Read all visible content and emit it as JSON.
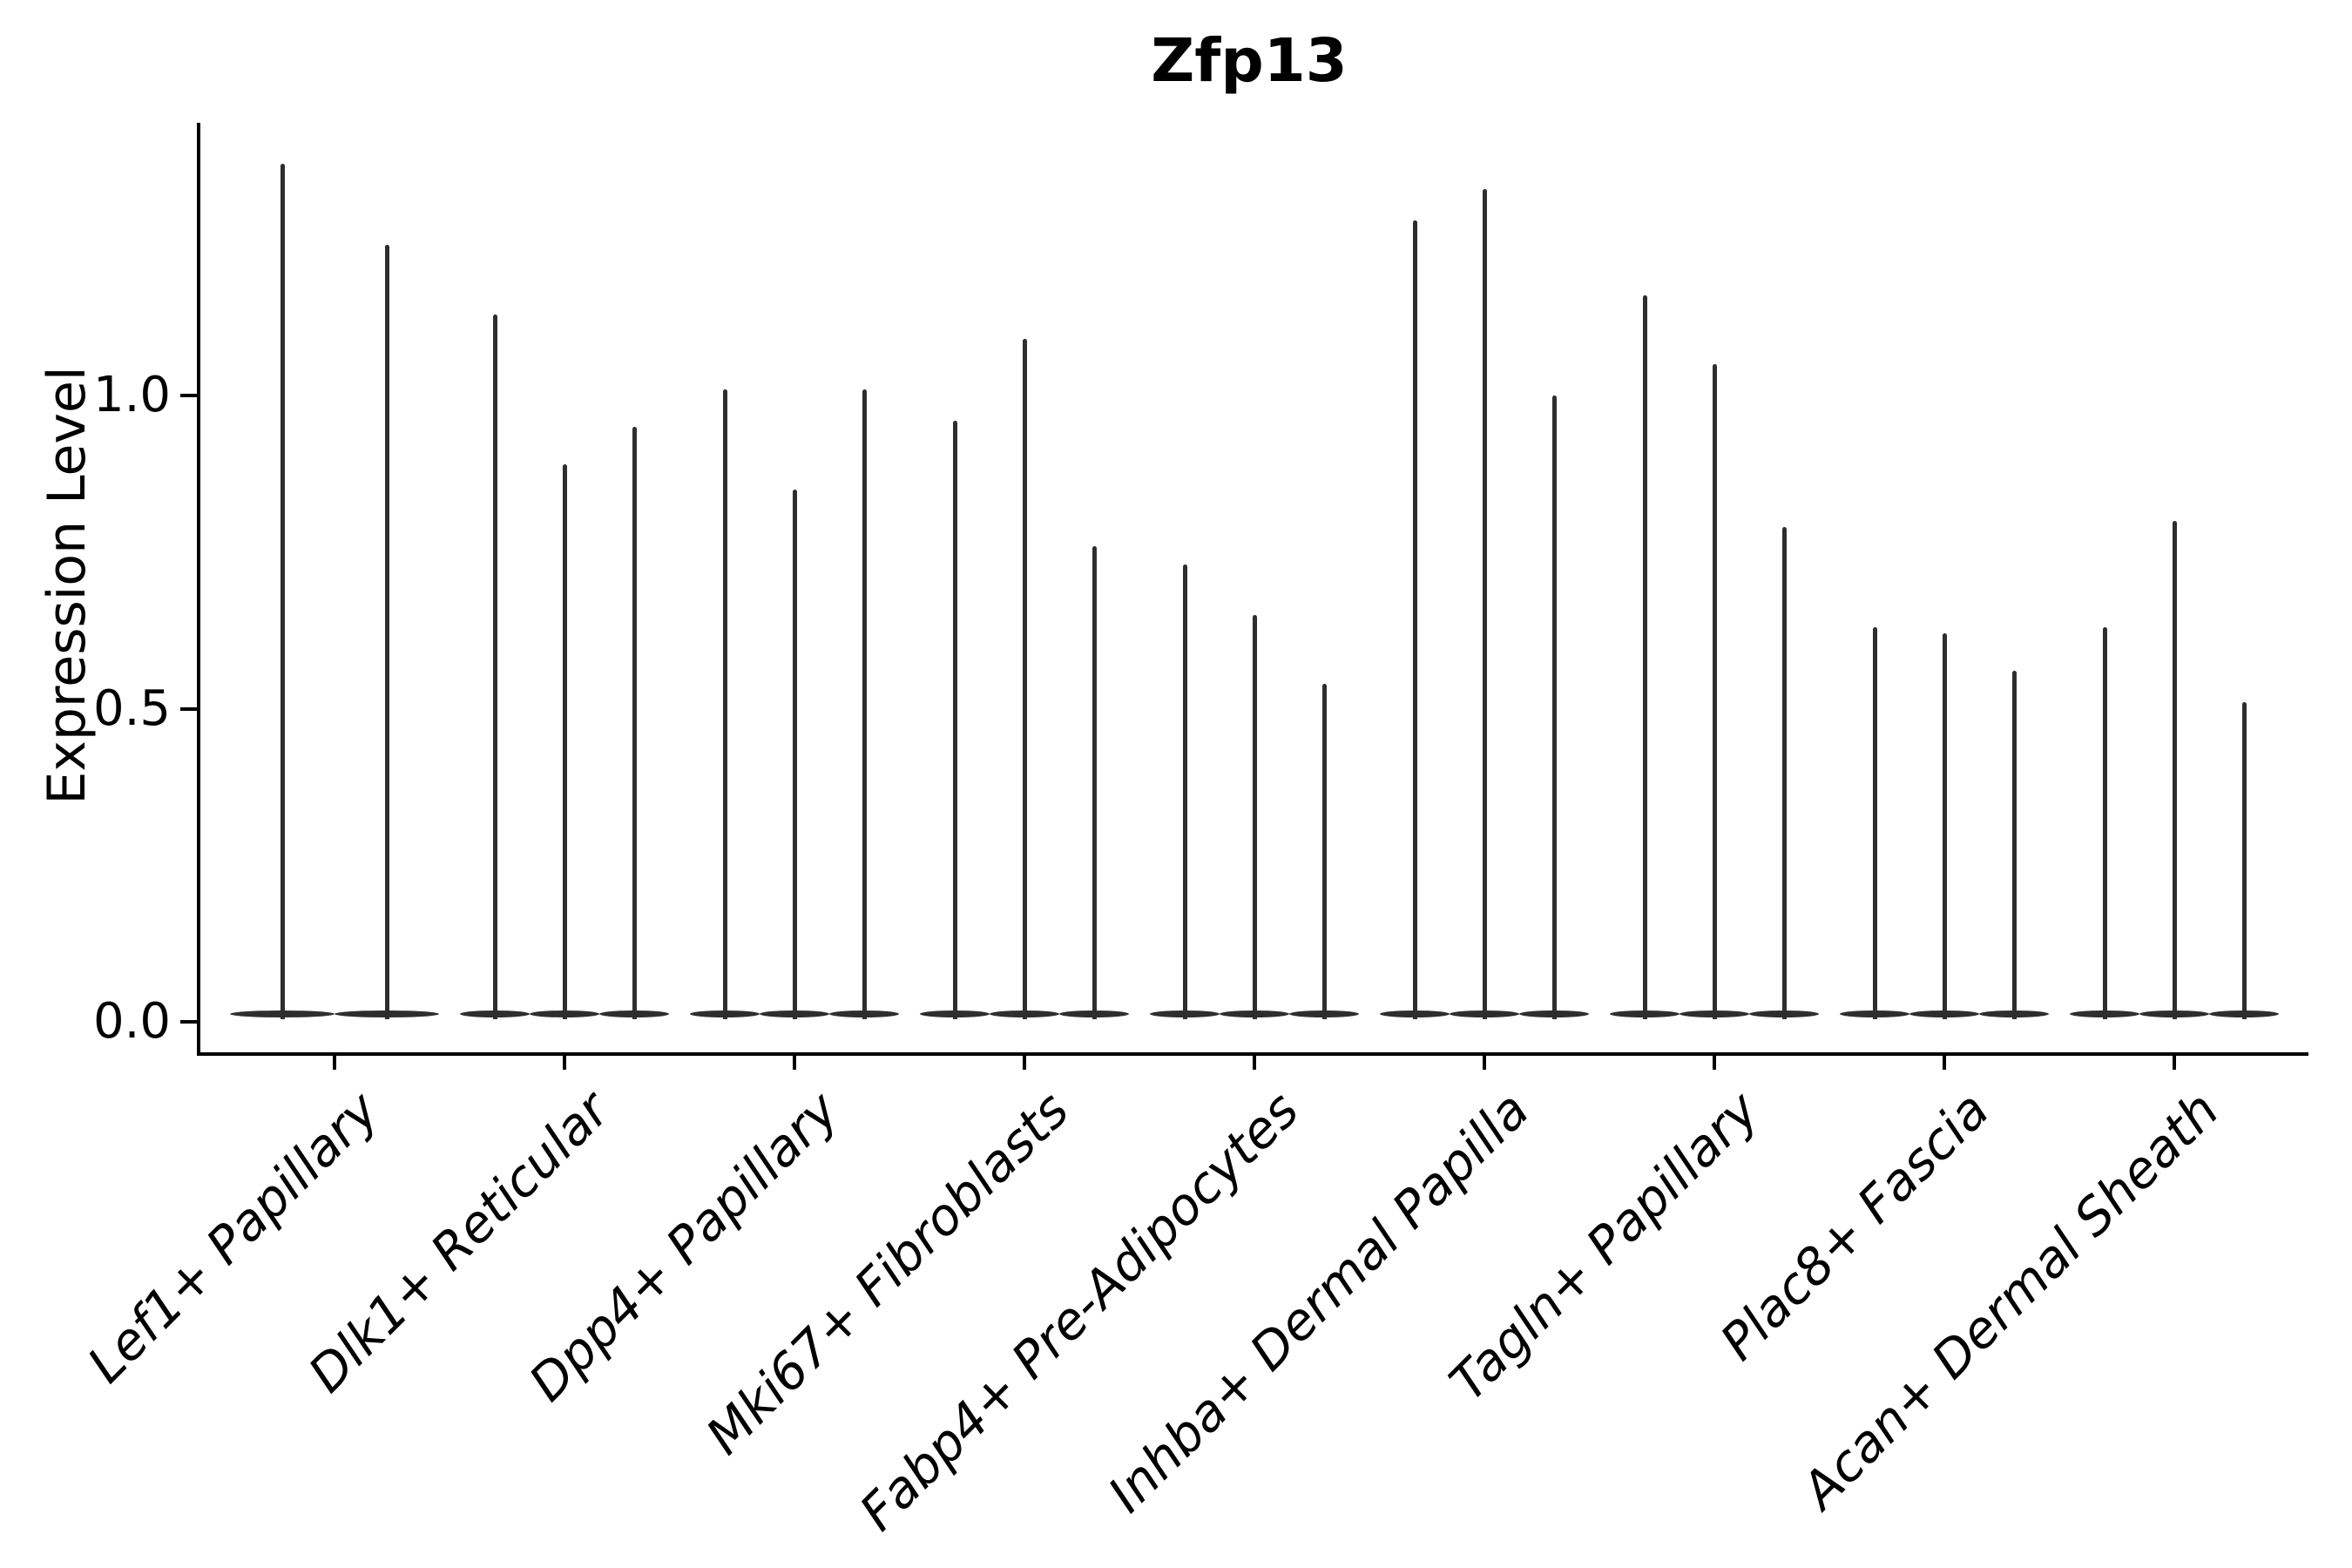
{
  "chart_data": {
    "type": "violin",
    "title": "Zfp13",
    "xlabel": "",
    "ylabel": "Expression Level",
    "yticks": [
      0.0,
      0.5,
      1.0
    ],
    "ytick_labels": [
      "0.0",
      "0.5",
      "1.0"
    ],
    "ylim": [
      -0.06,
      1.44
    ],
    "grid": false,
    "legend": "none",
    "categories": [
      "Lef1+ Papillary",
      "Dlk1+ Reticular",
      "Dpp4+ Papillary",
      "Mki67+ Fibroblasts",
      "Fabp4+ Pre-Adipocytes",
      "Inhba+ Dermal Papilla",
      "Tagln+ Papillary",
      "Plac8+ Fascia",
      "Acan+ Dermal Sheath"
    ],
    "series": [
      {
        "category": "Lef1+ Papillary",
        "violin_max_expression": [
          1.37,
          1.24
        ]
      },
      {
        "category": "Dlk1+ Reticular",
        "violin_max_expression": [
          1.13,
          0.89,
          0.95
        ]
      },
      {
        "category": "Dpp4+ Papillary",
        "violin_max_expression": [
          1.01,
          0.85,
          1.01
        ]
      },
      {
        "category": "Mki67+ Fibroblasts",
        "violin_max_expression": [
          0.96,
          1.09,
          0.76
        ]
      },
      {
        "category": "Fabp4+ Pre-Adipocytes",
        "violin_max_expression": [
          0.73,
          0.65,
          0.54
        ]
      },
      {
        "category": "Inhba+ Dermal Papilla",
        "violin_max_expression": [
          1.28,
          1.33,
          1.0
        ]
      },
      {
        "category": "Tagln+ Papillary",
        "violin_max_expression": [
          1.16,
          1.05,
          0.79
        ]
      },
      {
        "category": "Plac8+ Fascia",
        "violin_max_expression": [
          0.63,
          0.62,
          0.56
        ]
      },
      {
        "category": "Acan+ Dermal Sheath",
        "violin_max_expression": [
          0.63,
          0.8,
          0.51
        ]
      }
    ],
    "shape_note": "each violin is a thin vertical needle rising from a flat wide base at expression 0"
  },
  "styles": {
    "violin_color": "#2e2e2e",
    "axis_color": "#000000",
    "text_color": "#000000",
    "background": "#ffffff"
  }
}
